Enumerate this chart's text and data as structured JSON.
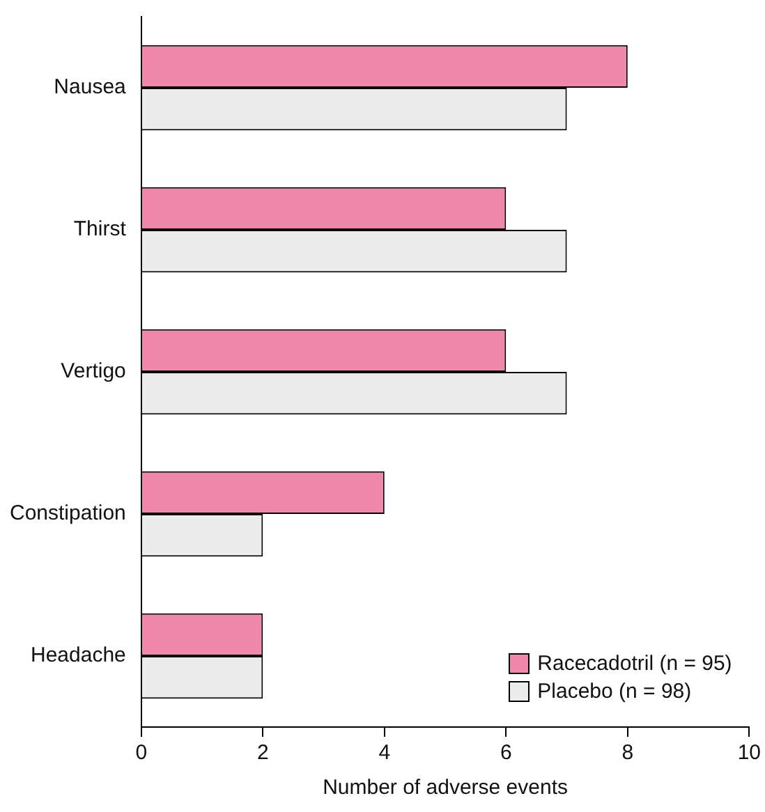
{
  "chart_data": {
    "type": "bar",
    "orientation": "horizontal",
    "xlabel": "Number of adverse events",
    "categories": [
      "Nausea",
      "Thirst",
      "Vertigo",
      "Constipation",
      "Headache"
    ],
    "series": [
      {
        "name": "Racecadotril (n = 95)",
        "color": "#f088ab",
        "values": [
          8,
          6,
          6,
          4,
          2
        ]
      },
      {
        "name": "Placebo (n = 98)",
        "color": "#ececec",
        "values": [
          7,
          7,
          7,
          2,
          2
        ]
      }
    ],
    "xlim": [
      0,
      10
    ],
    "xticks": [
      0,
      2,
      4,
      6,
      8,
      10
    ],
    "grid": false,
    "legend": "bottom right"
  }
}
